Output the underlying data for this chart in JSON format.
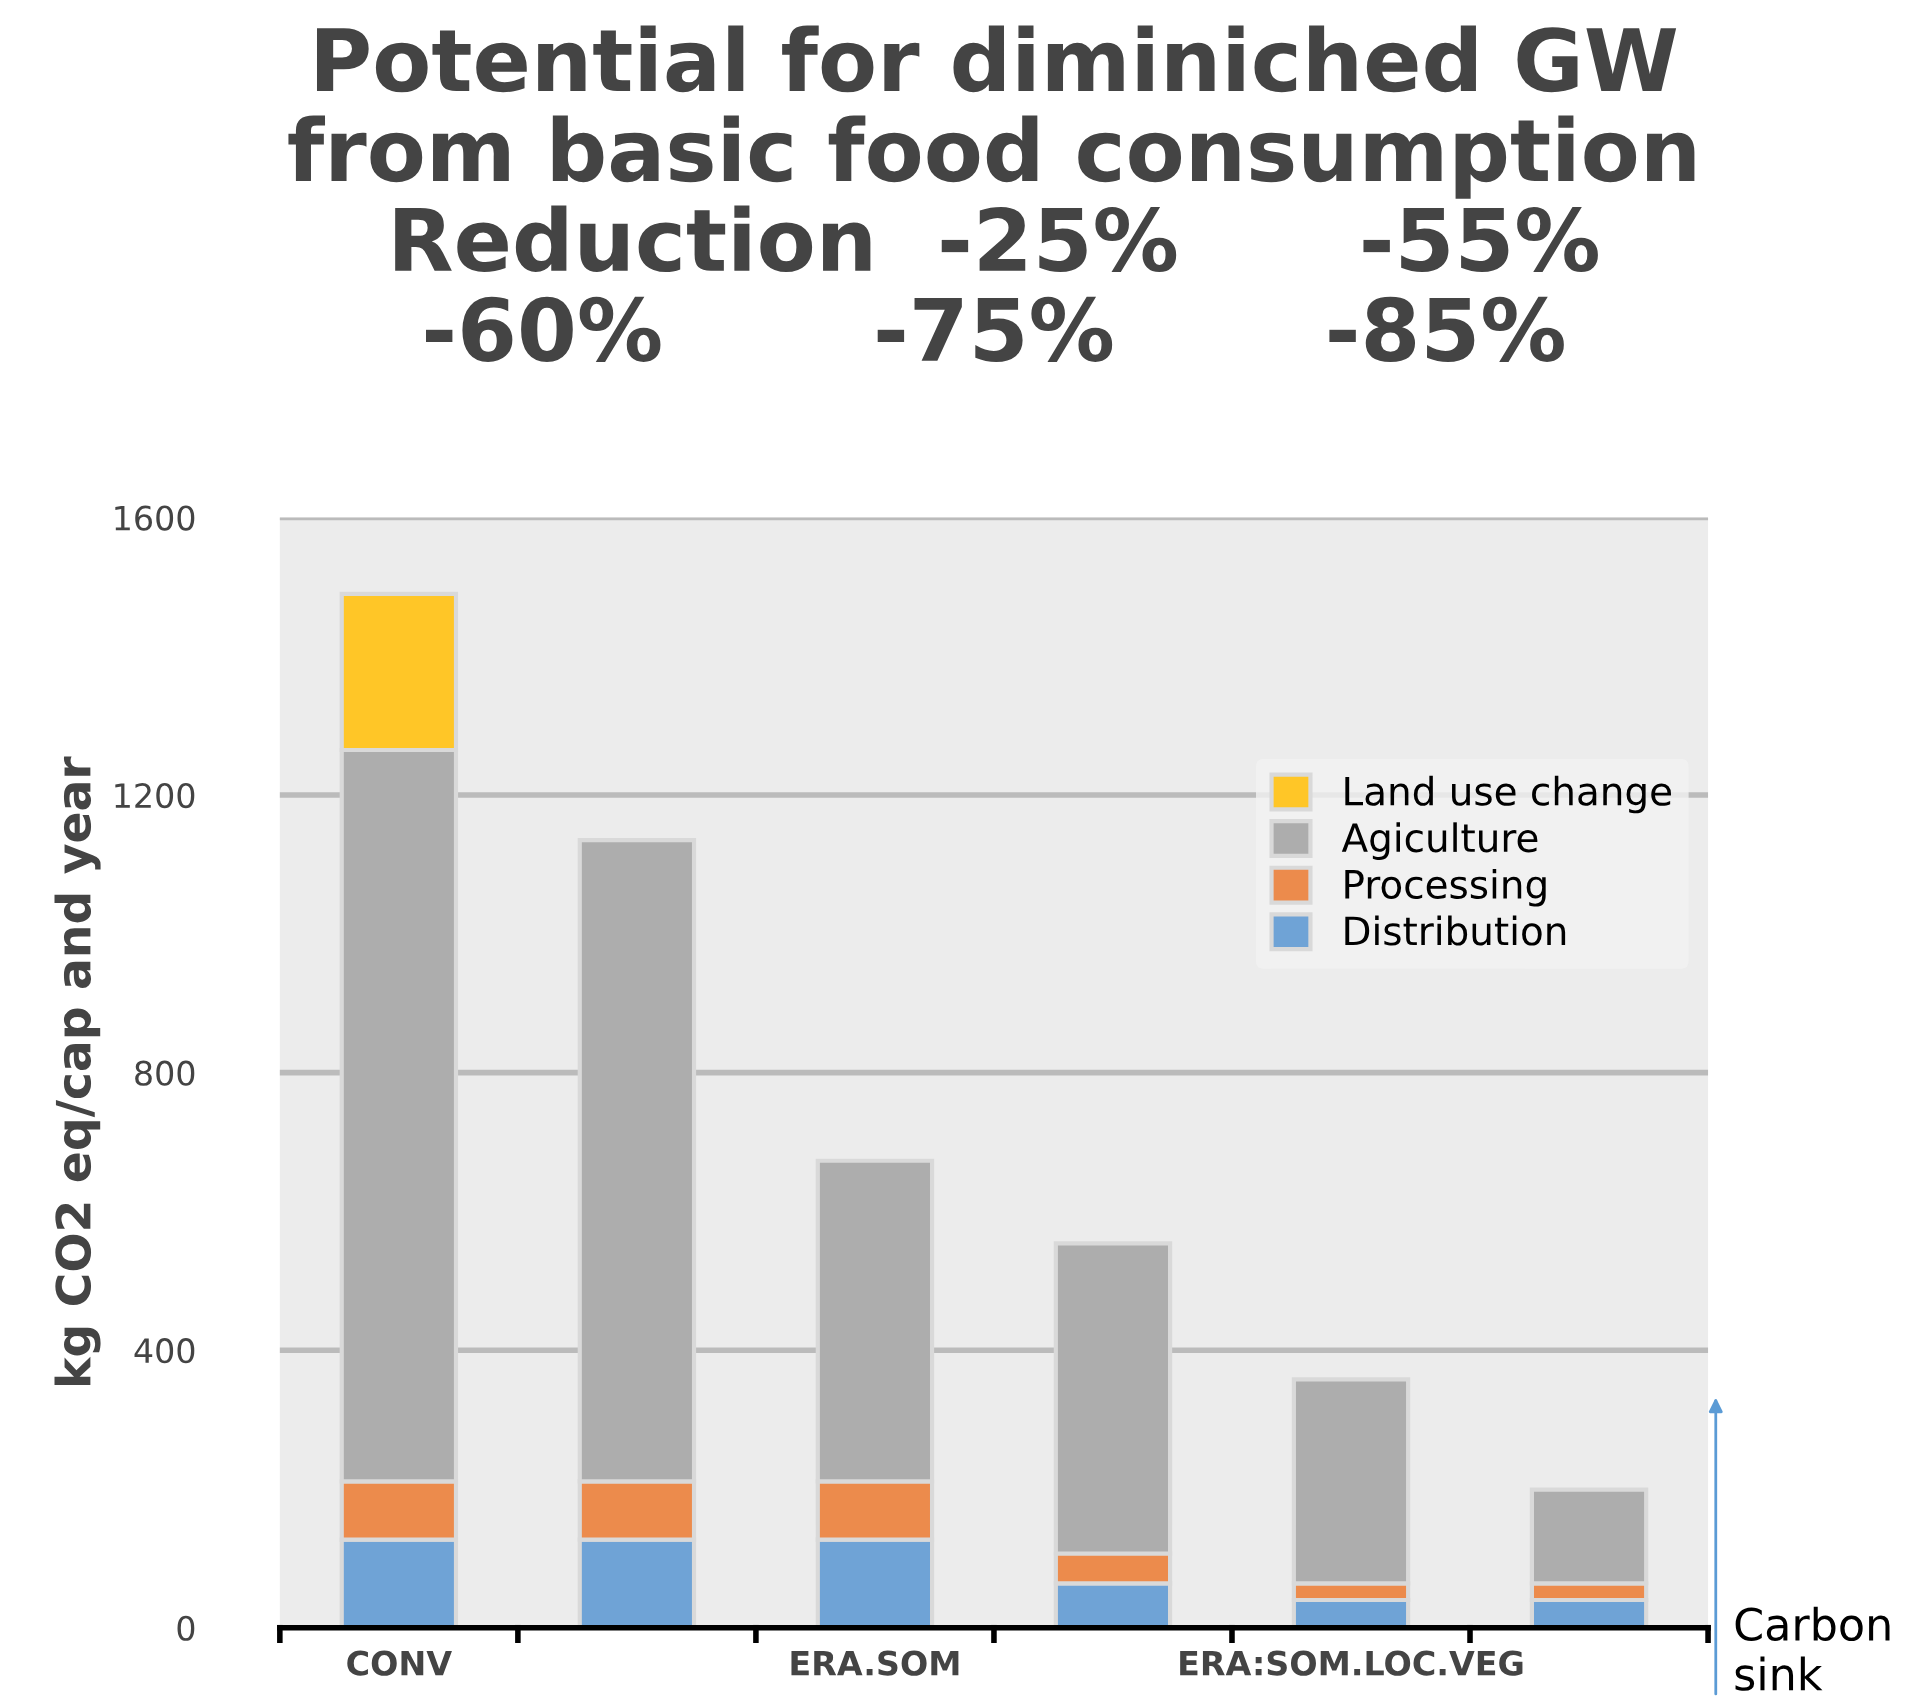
{
  "chart_data": {
    "type": "bar",
    "title": "Potential for diminiched GW\nfrom basic food consumption\nReduction  -25%      -55%\n-60%       -75%       -85%",
    "ylabel": "kg CO2 eq/cap and year",
    "categories": [
      "CONV",
      null,
      "ERA.SOM",
      null,
      "ERA:SOM.LOC.VEG",
      null
    ],
    "stacked": true,
    "series": [
      {
        "name": "Distribution",
        "color": "#6fa3d6",
        "values": [
          127,
          127,
          127,
          64,
          40,
          40
        ]
      },
      {
        "name": "Processing",
        "color": "#ec8b4c",
        "values": [
          84,
          84,
          84,
          43,
          24,
          24
        ]
      },
      {
        "name": "Agiculture",
        "color": "#adadad",
        "values": [
          1054,
          924,
          462,
          447,
          294,
          135
        ]
      },
      {
        "name": "Land use change",
        "color": "#ffc627",
        "values": [
          225,
          0,
          0,
          0,
          0,
          0
        ]
      }
    ],
    "ylim": [
      0,
      1600
    ],
    "yticks": [
      0,
      400,
      800,
      1200,
      1600
    ],
    "grid": "y",
    "legend": "top right",
    "annotations": [
      "Carbon\nsink"
    ]
  }
}
